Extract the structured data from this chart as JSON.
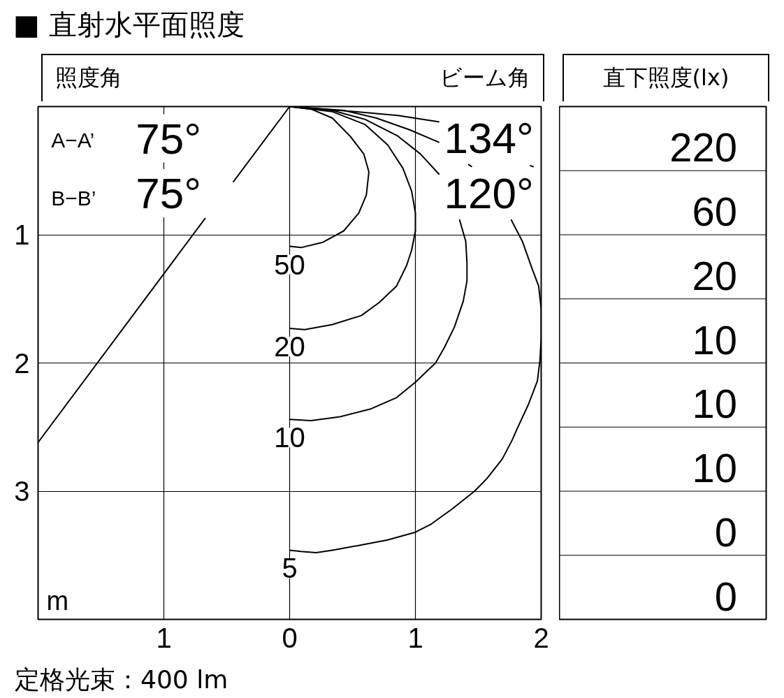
{
  "chart_data": [
    {
      "type": "line",
      "title": "■ 直射水平面照度",
      "xlabel": "m",
      "annotations": [
        "照度角",
        "A−A’",
        "75°",
        "B−B’",
        "75°",
        "ビーム角",
        "134°",
        "120°",
        "定格光束：400 lm"
      ],
      "xlim": [
        -2,
        2
      ],
      "ylim": [
        4,
        0
      ],
      "xticks": [
        {
          "value": -1,
          "label": "1"
        },
        0,
        1,
        2
      ],
      "yticks": [
        1,
        2,
        3
      ],
      "grid": true,
      "series": [
        {
          "name": "50",
          "color": "#000000",
          "x": [
            0,
            0.17,
            0.34,
            0.48,
            0.59,
            0.63,
            0.61,
            0.55,
            0.43,
            0.26,
            0.09,
            0
          ],
          "values": [
            0,
            0.02,
            0.09,
            0.23,
            0.37,
            0.51,
            0.69,
            0.83,
            0.97,
            1.06,
            1.1,
            1.09
          ]
        },
        {
          "name": "20",
          "color": "#000000",
          "x": [
            0,
            0.34,
            0.6,
            0.78,
            0.9,
            0.97,
            1.0,
            1.0,
            0.97,
            0.93,
            0.85,
            0.71,
            0.57,
            0.34,
            0.12,
            0
          ],
          "values": [
            0,
            0.04,
            0.14,
            0.3,
            0.48,
            0.66,
            0.83,
            0.97,
            1.12,
            1.24,
            1.4,
            1.53,
            1.63,
            1.7,
            1.74,
            1.73
          ]
        },
        {
          "name": "10",
          "color": "#000000",
          "x": [
            0,
            0.34,
            0.6,
            0.86,
            1.04,
            1.19,
            1.27,
            1.35,
            1.4,
            1.41,
            1.41,
            1.38,
            1.31,
            1.23,
            1.16,
            1.0,
            0.85,
            0.64,
            0.4,
            0.17,
            0
          ],
          "values": [
            0,
            0.03,
            0.1,
            0.23,
            0.37,
            0.53,
            null,
            0.88,
            1.05,
            1.22,
            1.36,
            1.52,
            1.72,
            1.88,
            2.0,
            2.15,
            2.27,
            2.36,
            2.42,
            2.45,
            2.44
          ]
        },
        {
          "name": "5",
          "color": "#000000",
          "x": [
            0,
            0.43,
            0.69,
            0.95,
            1.19,
            1.3,
            1.42,
            1.45,
            1.6,
            1.76,
            1.85,
            1.93,
            1.98,
            2.0,
            2.0,
            1.99,
            1.97,
            1.9,
            1.81,
            1.77,
            1.69,
            1.57,
            1.47,
            1.29,
            1.12,
            1.0,
            0.78,
            0.57,
            0.34,
            0.21,
            0.09,
            0
          ],
          "values": [
            0,
            0.03,
            0.09,
            0.18,
            0.28,
            null,
            0.45,
            0.47,
            null,
            0.88,
            1.05,
            1.27,
            1.4,
            1.58,
            1.81,
            1.98,
            2.14,
            2.32,
            2.51,
            2.6,
            2.75,
            2.9,
            3.0,
            3.14,
            3.26,
            3.32,
            3.38,
            3.42,
            3.46,
            3.48,
            3.47,
            3.46
          ]
        },
        {
          "color": "#000000",
          "x": [
            0,
            0.52,
            0.86,
            1.19,
            1.55,
            1.91,
            1.94
          ],
          "values": [
            0,
            0.04,
            0.07,
            0.12,
            null,
            0.46,
            0.47
          ]
        },
        {
          "color": "#000000",
          "x": [
            0,
            -0.45,
            -0.56,
            -0.67,
            -2.0
          ],
          "values": [
            0,
            0.59,
            null,
            0.87,
            2.62
          ]
        }
      ]
    },
    {
      "type": "other",
      "title": "直下照度(lx)",
      "values": [
        220,
        60,
        20,
        10,
        10,
        10,
        0,
        0
      ],
      "data_labels": true
    }
  ]
}
